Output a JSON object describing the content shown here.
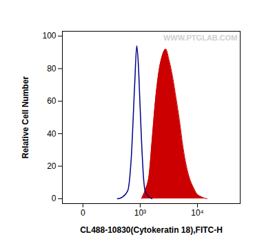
{
  "chart_data": {
    "type": "line",
    "xlabel": "CL488-10830(Cytokeratin 18),FITC-H",
    "ylabel": "Relative Cell Number",
    "annotation": "WWW.PTGLAB.COM",
    "log": "x",
    "xlim": [
      -150,
      52000
    ],
    "xticks": [
      0,
      {
        "value": 1000,
        "label": "10³"
      },
      {
        "value": 10000,
        "label": "10⁴"
      }
    ],
    "ylim": [
      -3,
      103
    ],
    "yticks": [
      0,
      20,
      40,
      60,
      80,
      100
    ],
    "series": [
      {
        "type": "area",
        "color": "#cc0000",
        "x": [
          1061,
          1229,
          1462,
          1639,
          1888,
          2174,
          2500,
          2869,
          3294,
          3776,
          4325,
          4960,
          5680,
          6500,
          7440,
          8510,
          9740,
          11130,
          12710,
          14540
        ],
        "values": [
          0,
          5,
          15,
          35,
          60,
          78,
          88,
          92,
          85,
          75,
          62,
          48,
          32,
          20,
          12,
          7,
          3,
          1.5,
          0.5,
          0
        ]
      },
      {
        "type": "line",
        "color": "#00008b",
        "x": [
          345,
          411,
          573,
          673,
          785,
          860,
          914,
          1000,
          1061,
          1159,
          1229,
          1462,
          1639
        ],
        "values": [
          0,
          0.5,
          5,
          25,
          70,
          94,
          85,
          55,
          35,
          12,
          5,
          1,
          0
        ]
      }
    ]
  }
}
